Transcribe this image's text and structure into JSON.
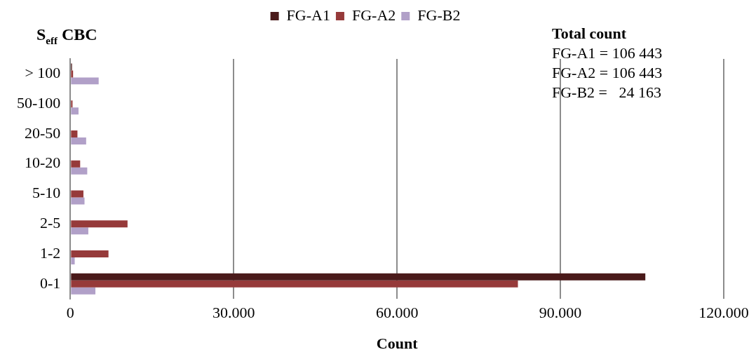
{
  "chart_data": {
    "type": "bar",
    "orientation": "horizontal",
    "ylabel": "S$_{eff}$ CBC",
    "xlabel": "Count",
    "categories": [
      "> 100",
      "50-100",
      "20-50",
      "10-20",
      "5-10",
      "2-5",
      "1-2",
      "0-1"
    ],
    "series": [
      {
        "name": "FG-A1",
        "color": "#4a1a1a",
        "values": [
          300,
          0,
          0,
          0,
          0,
          0,
          0,
          105600
        ]
      },
      {
        "name": "FG-A2",
        "color": "#963a3a",
        "values": [
          500,
          400,
          1300,
          1800,
          2400,
          10500,
          7000,
          82200
        ]
      },
      {
        "name": "FG-B2",
        "color": "#b1a0c8",
        "values": [
          5200,
          1500,
          2900,
          3100,
          2600,
          3300,
          800,
          4600
        ]
      }
    ],
    "xlim": [
      0,
      120000
    ],
    "xticks": [
      0,
      {
        "value": 30000,
        "label": "30.000"
      },
      {
        "value": 60000,
        "label": "60.000"
      },
      {
        "value": 90000,
        "label": "90.000"
      },
      {
        "value": 120000,
        "label": "120.000"
      }
    ],
    "grid": "x",
    "legend": "top",
    "annotations": [
      "Total count",
      "FG-A1 = 106 443",
      "FG-A2 = 106 443",
      "FG-B2 =   24 163"
    ]
  }
}
